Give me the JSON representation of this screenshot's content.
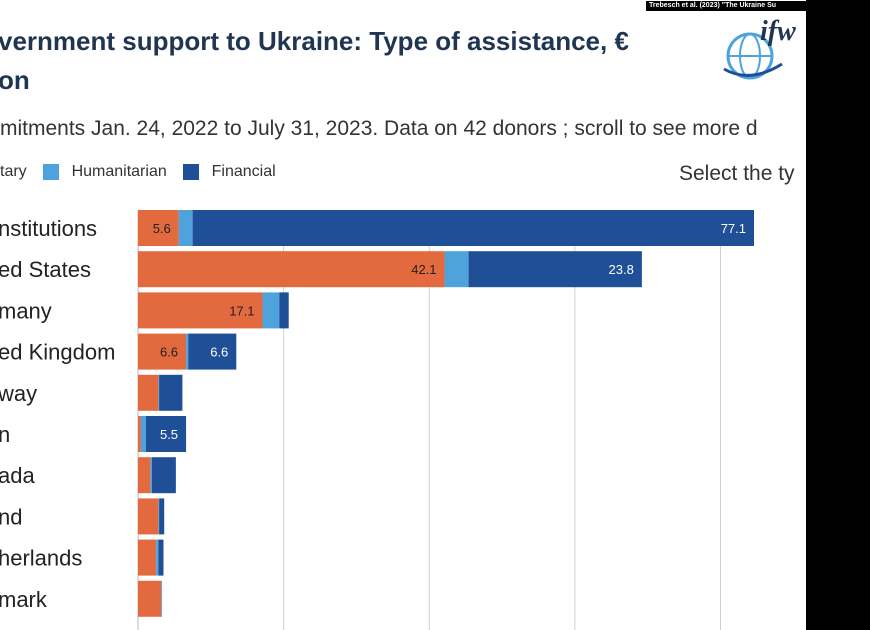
{
  "header": {
    "citation": "Trebesch et al. (2023) \"The Ukraine Su",
    "title_line1": "vernment support to Ukraine: Type of assistance, €",
    "title_line2": "on",
    "subtitle": "mitments Jan. 24, 2022 to July 31, 2023. Data on 42 donors ; scroll to see more d",
    "select_label": "Select the ty",
    "logo_text": "ifw"
  },
  "legend": [
    {
      "label": "tary",
      "color": "#e26a3e"
    },
    {
      "label": "Humanitarian",
      "color": "#4fa3dc"
    },
    {
      "label": "Financial",
      "color": "#1f4f96"
    }
  ],
  "colors": {
    "military": "#e26a3e",
    "humanitarian": "#4fa3dc",
    "financial": "#1f4f96",
    "title": "#1f3552"
  },
  "chart_data": {
    "type": "bar",
    "orientation": "horizontal",
    "stacked": true,
    "categories": [
      "nstitutions",
      "ed States",
      "many",
      "ed Kingdom",
      "way",
      "n",
      "ada",
      "nd",
      "herlands",
      "mark"
    ],
    "series": [
      {
        "name": "tary",
        "values": [
          5.6,
          42.1,
          17.1,
          6.6,
          2.8,
          0.4,
          1.7,
          2.8,
          2.5,
          3.2
        ]
      },
      {
        "name": "Humanitarian",
        "values": [
          1.9,
          3.3,
          2.3,
          0.3,
          0.1,
          0.7,
          0.2,
          0.1,
          0.3,
          0.1
        ]
      },
      {
        "name": "Financial",
        "values": [
          77.1,
          23.8,
          1.3,
          6.6,
          3.2,
          5.5,
          3.3,
          0.7,
          0.7,
          0.0
        ]
      }
    ],
    "data_labels": [
      [
        "5.6",
        "",
        "77.1"
      ],
      [
        "42.1",
        "",
        "23.8"
      ],
      [
        "17.1",
        "",
        ""
      ],
      [
        "6.6",
        "",
        "6.6"
      ],
      [
        "",
        "",
        ""
      ],
      [
        "",
        "",
        "5.5"
      ],
      [
        "",
        "",
        ""
      ],
      [
        "",
        "",
        ""
      ],
      [
        "",
        "",
        ""
      ],
      [
        "",
        "",
        ""
      ]
    ],
    "xlim": [
      0,
      92
    ],
    "gridlines": [
      20,
      40,
      60,
      80
    ],
    "grid": true
  }
}
